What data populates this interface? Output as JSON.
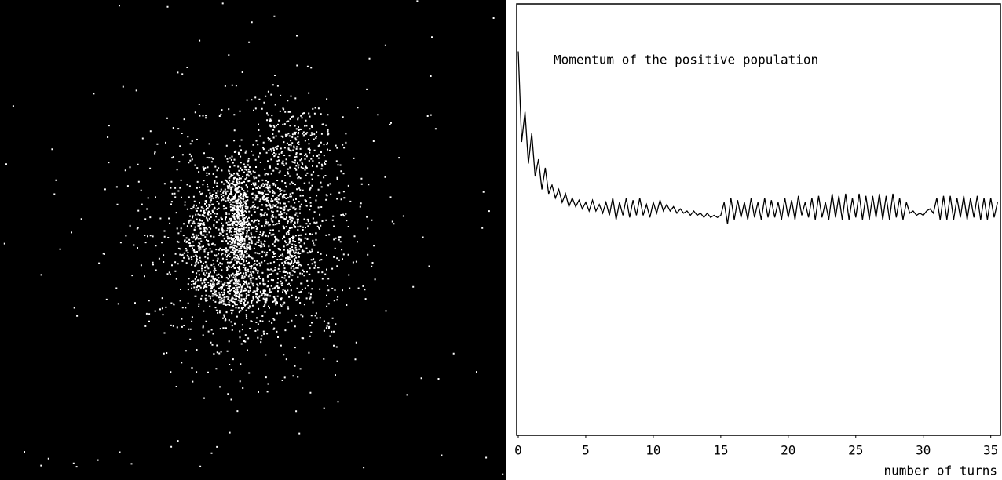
{
  "chart_data": {
    "type": "line",
    "annotation": "Momentum of the positive population",
    "xlabel": "number of turns",
    "x": [
      0,
      0.25,
      0.5,
      0.75,
      1,
      1.25,
      1.5,
      1.75,
      2,
      2.25,
      2.5,
      2.75,
      3,
      3.25,
      3.5,
      3.75,
      4,
      4.25,
      4.5,
      4.75,
      5,
      5.25,
      5.5,
      5.75,
      6,
      6.25,
      6.5,
      6.75,
      7,
      7.25,
      7.5,
      7.75,
      8,
      8.25,
      8.5,
      8.75,
      9,
      9.25,
      9.5,
      9.75,
      10,
      10.25,
      10.5,
      10.75,
      11,
      11.25,
      11.5,
      11.75,
      12,
      12.25,
      12.5,
      12.75,
      13,
      13.25,
      13.5,
      13.75,
      14,
      14.25,
      14.5,
      14.75,
      15,
      15.25,
      15.5,
      15.75,
      16,
      16.25,
      16.5,
      16.75,
      17,
      17.25,
      17.5,
      17.75,
      18,
      18.25,
      18.5,
      18.75,
      19,
      19.25,
      19.5,
      19.75,
      20,
      20.25,
      20.5,
      20.75,
      21,
      21.25,
      21.5,
      21.75,
      22,
      22.25,
      22.5,
      22.75,
      23,
      23.25,
      23.5,
      23.75,
      24,
      24.25,
      24.5,
      24.75,
      25,
      25.25,
      25.5,
      25.75,
      26,
      26.25,
      26.5,
      26.75,
      27,
      27.25,
      27.5,
      27.75,
      28,
      28.25,
      28.5,
      28.75,
      29,
      29.25,
      29.5,
      29.75,
      30,
      30.25,
      30.5,
      30.75,
      31,
      31.25,
      31.5,
      31.75,
      32,
      32.25,
      32.5,
      32.75,
      33,
      33.25,
      33.5,
      33.75,
      34,
      34.25,
      34.5,
      34.75,
      35,
      35.25,
      35.5
    ],
    "values": [
      89,
      68,
      75,
      63,
      70,
      60,
      64,
      57,
      62,
      56,
      58,
      55,
      57,
      54,
      56,
      53,
      55,
      53,
      54.5,
      52.5,
      54,
      52,
      54.5,
      52,
      53.5,
      51.5,
      54,
      51,
      55,
      50,
      54,
      51,
      55,
      50.5,
      54.5,
      51,
      55,
      51,
      53.5,
      50.5,
      54,
      51.5,
      54.5,
      52,
      53.5,
      52,
      53,
      51.5,
      52.5,
      51.5,
      52,
      51,
      52,
      51,
      51.5,
      50.5,
      51.5,
      50.5,
      51,
      50.5,
      51,
      54,
      49,
      55,
      50,
      54.5,
      50.5,
      54,
      50,
      55,
      50.5,
      54,
      50,
      55,
      50.5,
      54.5,
      50.5,
      54,
      50,
      55,
      50.5,
      54.5,
      50,
      55.5,
      51,
      54,
      50.5,
      55,
      50,
      55.5,
      50.5,
      54,
      50,
      56,
      50.5,
      55.5,
      50,
      56,
      50,
      55,
      50.5,
      56,
      50,
      55.5,
      50,
      55.5,
      50.5,
      56,
      50,
      55.5,
      50,
      56,
      50.5,
      55,
      50,
      54,
      51.5,
      52,
      51,
      51.5,
      51,
      52,
      52.5,
      51.5,
      55,
      50,
      55.5,
      50,
      55.5,
      50,
      55,
      50.5,
      55.5,
      50,
      55,
      50.5,
      55.5,
      50,
      55,
      50,
      55,
      50.5,
      54
    ],
    "color": "#000000",
    "xlim": [
      0,
      35.6
    ],
    "xticks": [
      0,
      5,
      10,
      15,
      20,
      25,
      30,
      35
    ],
    "ylim": [
      0,
      100
    ]
  }
}
